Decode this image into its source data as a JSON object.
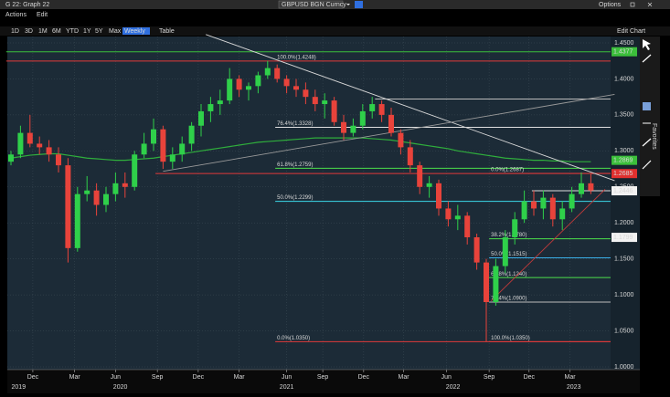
{
  "window": {
    "title": "G 22: Graph 22",
    "ticker": "GBPUSD BGN Curncy",
    "options": "Options",
    "menus": [
      "Actions",
      "Edit"
    ],
    "ranges": [
      "1D",
      "3D",
      "1M",
      "6M",
      "YTD",
      "1Y",
      "5Y",
      "Max",
      "Weekly",
      "Table"
    ],
    "edit_chart": "Edit Chart",
    "favorites": "Favorites"
  },
  "chart_data": {
    "type": "candlestick",
    "ylim": [
      1.0,
      1.45
    ],
    "yticks": [
      {
        "value": 1.45,
        "label": "1.4500"
      },
      {
        "value": 1.4,
        "label": "1.4000"
      },
      {
        "value": 1.35,
        "label": "1.3500"
      },
      {
        "value": 1.3,
        "label": "1.3000"
      },
      {
        "value": 1.25,
        "label": "1.2500"
      },
      {
        "value": 1.2,
        "label": "1.2000"
      },
      {
        "value": 1.15,
        "label": "1.1500"
      },
      {
        "value": 1.1,
        "label": "1.1000"
      },
      {
        "value": 1.05,
        "label": "1.0500"
      },
      {
        "value": 1.0,
        "label": "1.0000"
      }
    ],
    "xlim": [
      -0.5,
      63.5
    ],
    "xticks": [
      {
        "value": 2.3,
        "label": "Dec"
      },
      {
        "value": 6.7,
        "label": "Mar"
      },
      {
        "value": 11,
        "label": "Jun"
      },
      {
        "value": 15.4,
        "label": "Sep"
      },
      {
        "value": 19.7,
        "label": "Dec"
      },
      {
        "value": 24,
        "label": "Mar"
      },
      {
        "value": 29,
        "label": "Jun"
      },
      {
        "value": 32.8,
        "label": "Sep"
      },
      {
        "value": 37.1,
        "label": "Dec"
      },
      {
        "value": 41.3,
        "label": "Mar"
      },
      {
        "value": 45.8,
        "label": "Jun"
      },
      {
        "value": 50.3,
        "label": "Sep"
      },
      {
        "value": 54.5,
        "label": "Dec"
      },
      {
        "value": 58.8,
        "label": "Mar"
      }
    ],
    "years": [
      {
        "value": 0.8,
        "label": "2019"
      },
      {
        "value": 11.5,
        "label": "2020"
      },
      {
        "value": 29,
        "label": "2021"
      },
      {
        "value": 46.5,
        "label": "2022"
      },
      {
        "value": 59.2,
        "label": "2023"
      }
    ],
    "grid": true,
    "up_color": "#2fd04a",
    "down_color": "#e8433b",
    "ohlc": [
      [
        1.285,
        1.3,
        1.28,
        1.295
      ],
      [
        1.295,
        1.335,
        1.29,
        1.325
      ],
      [
        1.325,
        1.35,
        1.305,
        1.31
      ],
      [
        1.31,
        1.32,
        1.295,
        1.305
      ],
      [
        1.305,
        1.315,
        1.285,
        1.295
      ],
      [
        1.295,
        1.305,
        1.27,
        1.28
      ],
      [
        1.28,
        1.29,
        1.145,
        1.165
      ],
      [
        1.165,
        1.25,
        1.16,
        1.24
      ],
      [
        1.24,
        1.265,
        1.23,
        1.245
      ],
      [
        1.245,
        1.255,
        1.21,
        1.225
      ],
      [
        1.225,
        1.25,
        1.215,
        1.24
      ],
      [
        1.24,
        1.27,
        1.23,
        1.255
      ],
      [
        1.255,
        1.27,
        1.235,
        1.25
      ],
      [
        1.25,
        1.3,
        1.245,
        1.295
      ],
      [
        1.295,
        1.325,
        1.29,
        1.31
      ],
      [
        1.31,
        1.345,
        1.3,
        1.33
      ],
      [
        1.33,
        1.335,
        1.275,
        1.285
      ],
      [
        1.285,
        1.305,
        1.275,
        1.295
      ],
      [
        1.295,
        1.32,
        1.285,
        1.31
      ],
      [
        1.31,
        1.34,
        1.3,
        1.335
      ],
      [
        1.335,
        1.365,
        1.32,
        1.355
      ],
      [
        1.355,
        1.375,
        1.34,
        1.365
      ],
      [
        1.365,
        1.385,
        1.35,
        1.37
      ],
      [
        1.37,
        1.415,
        1.365,
        1.4
      ],
      [
        1.4,
        1.405,
        1.375,
        1.385
      ],
      [
        1.385,
        1.395,
        1.37,
        1.39
      ],
      [
        1.39,
        1.41,
        1.38,
        1.405
      ],
      [
        1.405,
        1.425,
        1.4,
        1.415
      ],
      [
        1.415,
        1.42,
        1.395,
        1.4
      ],
      [
        1.4,
        1.405,
        1.38,
        1.39
      ],
      [
        1.39,
        1.4,
        1.375,
        1.385
      ],
      [
        1.385,
        1.395,
        1.365,
        1.375
      ],
      [
        1.375,
        1.385,
        1.355,
        1.365
      ],
      [
        1.365,
        1.38,
        1.345,
        1.37
      ],
      [
        1.37,
        1.375,
        1.335,
        1.34
      ],
      [
        1.34,
        1.35,
        1.315,
        1.325
      ],
      [
        1.325,
        1.345,
        1.32,
        1.335
      ],
      [
        1.335,
        1.365,
        1.33,
        1.355
      ],
      [
        1.355,
        1.375,
        1.345,
        1.365
      ],
      [
        1.365,
        1.37,
        1.34,
        1.35
      ],
      [
        1.35,
        1.36,
        1.32,
        1.325
      ],
      [
        1.325,
        1.33,
        1.295,
        1.305
      ],
      [
        1.305,
        1.315,
        1.27,
        1.28
      ],
      [
        1.28,
        1.285,
        1.24,
        1.25
      ],
      [
        1.25,
        1.265,
        1.235,
        1.255
      ],
      [
        1.255,
        1.26,
        1.21,
        1.22
      ],
      [
        1.22,
        1.23,
        1.195,
        1.205
      ],
      [
        1.205,
        1.225,
        1.19,
        1.21
      ],
      [
        1.21,
        1.215,
        1.17,
        1.18
      ],
      [
        1.18,
        1.185,
        1.135,
        1.145
      ],
      [
        1.145,
        1.15,
        1.035,
        1.09
      ],
      [
        1.09,
        1.15,
        1.085,
        1.14
      ],
      [
        1.14,
        1.19,
        1.13,
        1.18
      ],
      [
        1.18,
        1.215,
        1.17,
        1.205
      ],
      [
        1.205,
        1.245,
        1.2,
        1.23
      ],
      [
        1.23,
        1.245,
        1.21,
        1.22
      ],
      [
        1.22,
        1.245,
        1.205,
        1.235
      ],
      [
        1.235,
        1.24,
        1.195,
        1.205
      ],
      [
        1.205,
        1.23,
        1.19,
        1.22
      ],
      [
        1.22,
        1.25,
        1.215,
        1.24
      ],
      [
        1.24,
        1.27,
        1.235,
        1.255
      ],
      [
        1.255,
        1.268,
        1.24,
        1.245
      ]
    ],
    "moving_average": {
      "color": "#2fae3c",
      "values": [
        1.29,
        1.292,
        1.294,
        1.295,
        1.296,
        1.296,
        1.294,
        1.292,
        1.29,
        1.289,
        1.288,
        1.287,
        1.287,
        1.288,
        1.289,
        1.29,
        1.292,
        1.294,
        1.296,
        1.298,
        1.3,
        1.302,
        1.304,
        1.306,
        1.308,
        1.31,
        1.312,
        1.313,
        1.314,
        1.315,
        1.316,
        1.317,
        1.318,
        1.318,
        1.318,
        1.318,
        1.318,
        1.318,
        1.317,
        1.316,
        1.315,
        1.313,
        1.311,
        1.309,
        1.307,
        1.305,
        1.303,
        1.3,
        1.298,
        1.296,
        1.294,
        1.292,
        1.29,
        1.289,
        1.288,
        1.287,
        1.287,
        1.286,
        1.286,
        1.285,
        1.285,
        1.285
      ]
    },
    "levels": [
      {
        "value": 1.4377,
        "start": -0.5,
        "color": "#3bbf3b"
      },
      {
        "label": "100.0%(1.4248)",
        "value": 1.4248,
        "start": -0.5,
        "label_at": 27.8,
        "color": "#e03a3a"
      },
      {
        "label": "76.4%(1.3328)",
        "value": 1.3328,
        "start": 27.8,
        "label_at": 27.8,
        "color": "#e0e0e0"
      },
      {
        "label": "61.8%(1.2759)",
        "value": 1.2759,
        "start": 27.8,
        "label_at": 27.8,
        "color": "#4be04b"
      },
      {
        "value": 1.2685,
        "start": 15.2,
        "color": "#e03a3a"
      },
      {
        "label": "50.0%(1.2299)",
        "value": 1.2299,
        "start": 27.8,
        "label_at": 27.8,
        "color": "#3ad8e8"
      },
      {
        "label": "0.0%(1.0350)",
        "value": 1.035,
        "start": 27.8,
        "label_at": 27.8,
        "color": "#e03a3a"
      },
      {
        "value": 1.372,
        "start": 38.3,
        "color": "#bbbbbb"
      },
      {
        "label": "0.0%(1.2687)",
        "value": 1.2687,
        "start": 50.3,
        "label_at": 50.3,
        "color": "#e03a3a"
      },
      {
        "label": "38.2%(1.1780)",
        "value": 1.178,
        "start": 50.3,
        "label_at": 50.3,
        "color": "#4be04b"
      },
      {
        "label": "50.0%(1.1515)",
        "value": 1.1515,
        "start": 50.3,
        "label_at": 50.3,
        "color": "#3ab0e8"
      },
      {
        "label": "61.8%(1.1240)",
        "value": 1.124,
        "start": 50.3,
        "label_at": 50.3,
        "color": "#4be04b"
      },
      {
        "label": "76.4%(1.0900)",
        "value": 1.09,
        "start": 50.3,
        "label_at": 50.3,
        "color": "#bbbbbb"
      },
      {
        "label": "100.0%(1.0350)",
        "value": 1.035,
        "start": 50.3,
        "label_at": 50.3,
        "color": "#e03a3a"
      },
      {
        "value": 1.2446,
        "start": 54.8,
        "color": "#dddddd"
      }
    ],
    "trendlines": [
      {
        "from": [
          20.5,
          1.4616
        ],
        "to": [
          63.5,
          1.2587
        ],
        "color": "#d8d8d8"
      },
      {
        "from": [
          16,
          1.2716
        ],
        "to": [
          63.5,
          1.3785
        ],
        "color": "#9a9a9a"
      },
      {
        "from": [
          50.5,
          1.0917
        ],
        "to": [
          62.5,
          1.2466
        ],
        "color": "#c23a3a"
      }
    ],
    "price_tags": [
      {
        "value": 1.4377,
        "label": "1.4377",
        "bg": "#3bbf3b",
        "fg": "#000000"
      },
      {
        "value": 1.2869,
        "label": "1.2869",
        "bg": "#3bbf3b",
        "fg": "#000000"
      },
      {
        "value": 1.2685,
        "label": "1.2685",
        "bg": "#e0302f",
        "fg": "#ffffff"
      },
      {
        "value": 1.2446,
        "label": "1.2446",
        "bg": "#f2f2f2",
        "fg": "#000000"
      },
      {
        "value": 1.1799,
        "label": "1.1799",
        "bg": "#f2f2f2",
        "fg": "#000000"
      }
    ]
  }
}
